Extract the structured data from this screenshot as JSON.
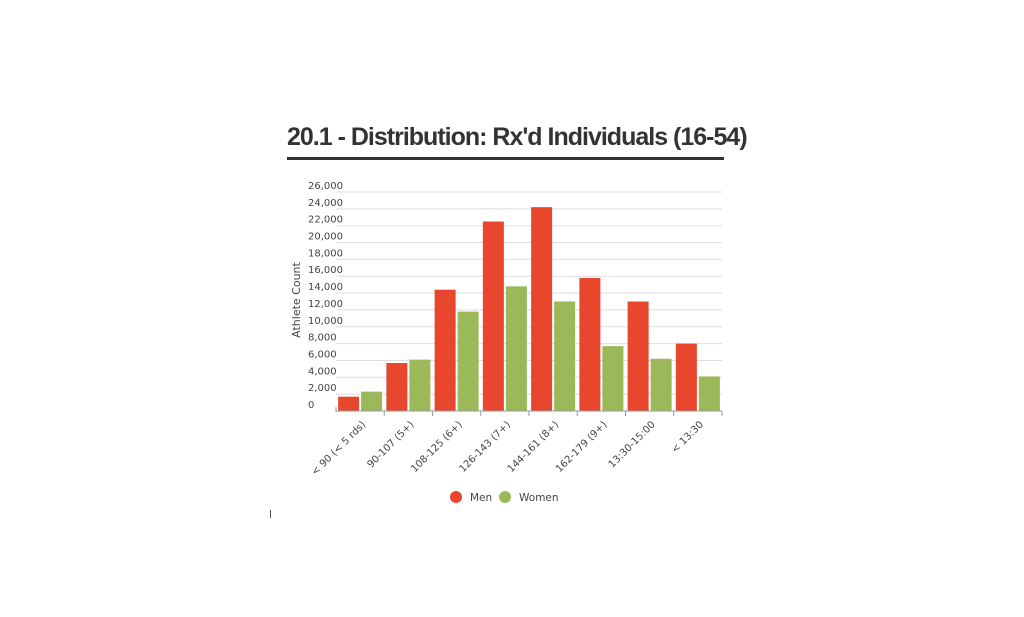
{
  "chart_data": {
    "type": "bar",
    "title": "20.1 - Distribution: Rx'd Individuals (16-54)",
    "xlabel": "",
    "ylabel": "Athlete Count",
    "ylim": [
      0,
      26000
    ],
    "yticks": [
      0,
      2000,
      4000,
      6000,
      8000,
      10000,
      12000,
      14000,
      16000,
      18000,
      20000,
      22000,
      24000,
      26000
    ],
    "ytick_labels": [
      "0",
      "2,000",
      "4,000",
      "6,000",
      "8,000",
      "10,000",
      "12,000",
      "14,000",
      "16,000",
      "18,000",
      "20,000",
      "22,000",
      "24,000",
      "26,000"
    ],
    "categories": [
      "< 90 (< 5 rds)",
      "90-107 (5+)",
      "108-125 (6+)",
      "126-143 (7+)",
      "144-161 (8+)",
      "162-179 (9+)",
      "13:30-15:00",
      "< 13:30"
    ],
    "series": [
      {
        "name": "Men",
        "color": "#e8472e",
        "values": [
          1700,
          5700,
          14400,
          22500,
          24200,
          15800,
          13000,
          8000
        ]
      },
      {
        "name": "Women",
        "color": "#9cb95a",
        "values": [
          2300,
          6100,
          11800,
          14800,
          13000,
          7700,
          6200,
          4100
        ]
      }
    ],
    "legend_position": "bottom-center",
    "grid": true
  }
}
